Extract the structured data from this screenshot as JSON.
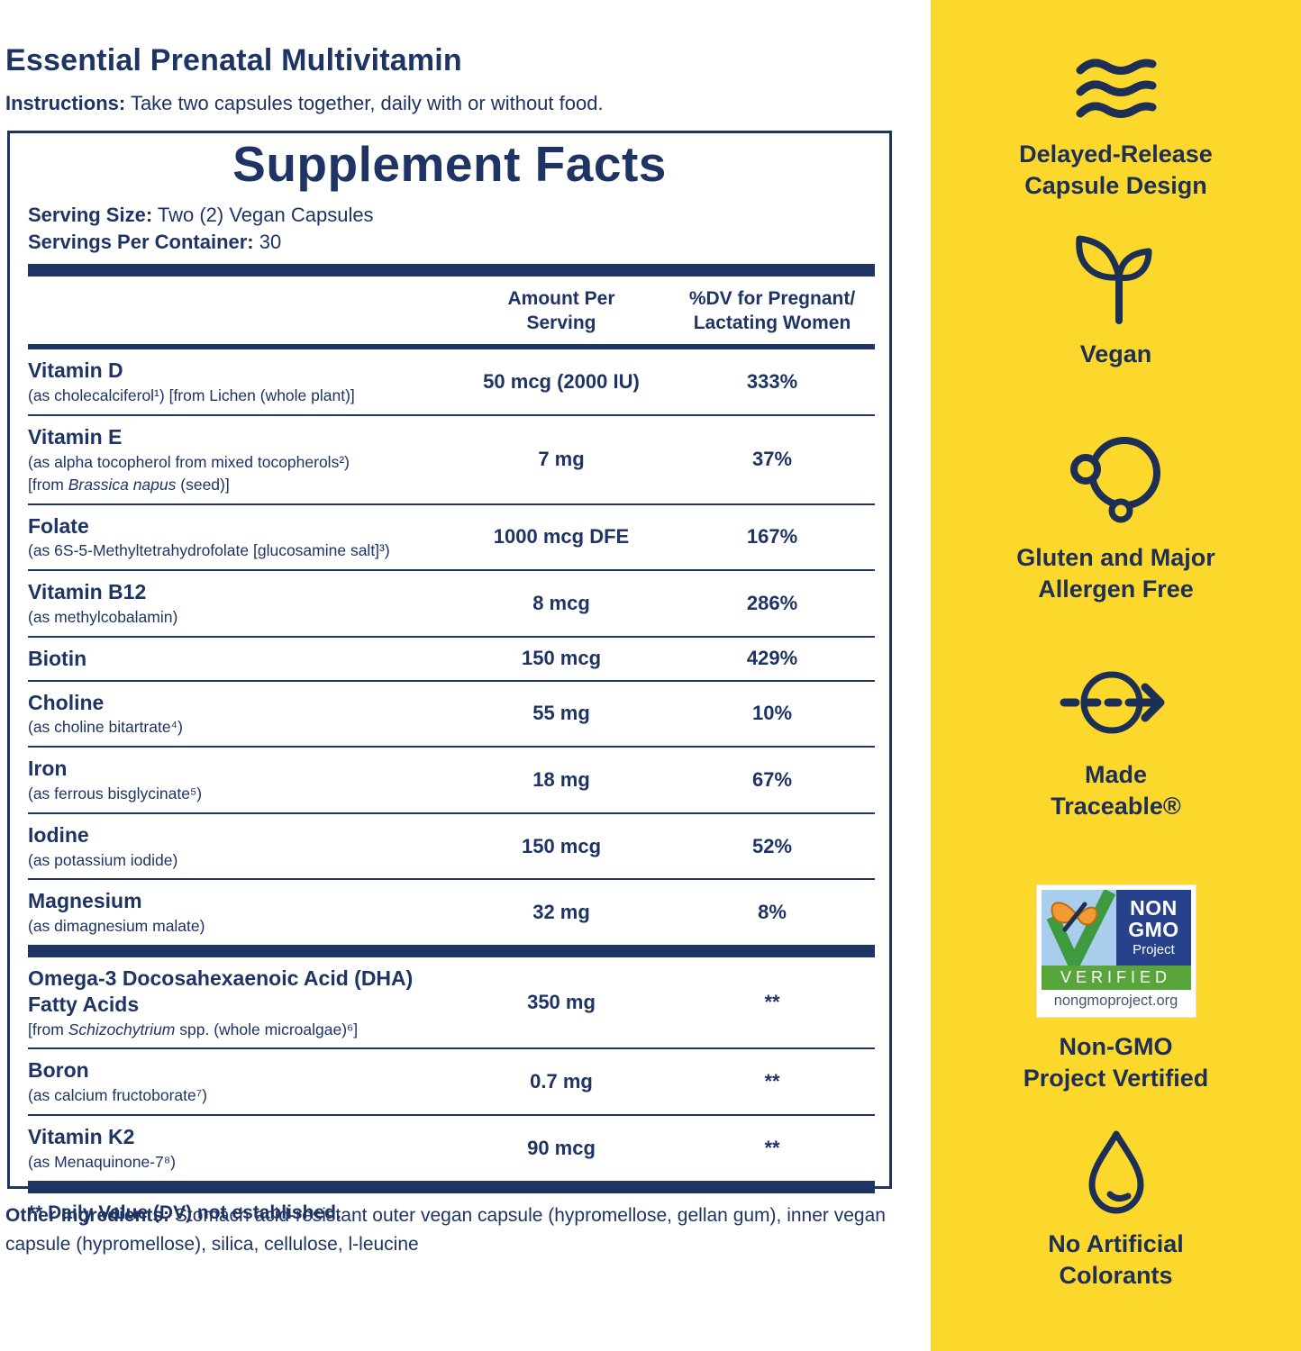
{
  "page": {
    "title": "Essential Prenatal Multivitamin",
    "instructions_label": "Instructions:",
    "instructions_text": " Take two capsules together, daily with or without food."
  },
  "facts": {
    "title": "Supplement Facts",
    "serving_size_label": "Serving Size:",
    "serving_size_value": " Two (2) Vegan Capsules",
    "servings_label": "Servings Per Container:",
    "servings_value": " 30",
    "amount_header": [
      "Amount Per",
      "Serving"
    ],
    "dv_header": [
      "%DV for Pregnant/",
      "Lactating Women"
    ],
    "groups": [
      {
        "rows": [
          {
            "name": "Vitamin D",
            "subs": [
              {
                "text": "(as cholecalciferol¹) [from Lichen (whole plant)]"
              }
            ],
            "amount": "50 mcg (2000 IU)",
            "dv": "333%"
          },
          {
            "name": "Vitamin E",
            "subs": [
              {
                "text": "(as alpha tocopherol from mixed tocopherols²)"
              },
              {
                "pre": "[from ",
                "italic": "Brassica napus",
                "post": " (seed)]"
              }
            ],
            "amount": "7 mg",
            "dv": "37%"
          },
          {
            "name": "Folate",
            "subs": [
              {
                "text": "(as 6S-5-Methyltetrahydrofolate [glucosamine salt]³)"
              }
            ],
            "amount": "1000 mcg DFE",
            "dv": "167%"
          },
          {
            "name": "Vitamin B12",
            "subs": [
              {
                "text": "(as methylcobalamin)"
              }
            ],
            "amount": "8 mcg",
            "dv": "286%"
          },
          {
            "name": "Biotin",
            "subs": [],
            "amount": "150 mcg",
            "dv": "429%"
          },
          {
            "name": "Choline",
            "subs": [
              {
                "text": "(as choline bitartrate⁴)"
              }
            ],
            "amount": "55 mg",
            "dv": "10%"
          },
          {
            "name": "Iron",
            "subs": [
              {
                "text": "(as ferrous bisglycinate⁵)"
              }
            ],
            "amount": "18 mg",
            "dv": "67%"
          },
          {
            "name": "Iodine",
            "subs": [
              {
                "text": "(as potassium iodide)"
              }
            ],
            "amount": "150 mcg",
            "dv": "52%"
          },
          {
            "name": "Magnesium",
            "subs": [
              {
                "text": "(as dimagnesium malate)"
              }
            ],
            "amount": "32 mg",
            "dv": "8%"
          }
        ]
      },
      {
        "rows": [
          {
            "name_lines": [
              "Omega-3 Docosahexaenoic Acid (DHA)",
              "Fatty Acids"
            ],
            "subs": [
              {
                "pre": "[from ",
                "italic": "Schizochytrium",
                "post": " spp. (whole microalgae)⁶]"
              }
            ],
            "amount": "350 mg",
            "dv": "**"
          },
          {
            "name": "Boron",
            "subs": [
              {
                "text": "(as calcium fructoborate⁷)"
              }
            ],
            "amount": "0.7 mg",
            "dv": "**"
          },
          {
            "name": "Vitamin K2",
            "subs": [
              {
                "text": "(as Menaquinone-7⁸)"
              }
            ],
            "amount": "90 mcg",
            "dv": "**"
          }
        ]
      }
    ],
    "footnote": "** Daily Value (DV) not established."
  },
  "other_ingredients": {
    "label": "Other Ingredients:",
    "text": " Stomach acid-resistant outer vegan capsule (hypromellose, gellan gum), inner vegan capsule (hypromellose),  silica, cellulose, l-leucine"
  },
  "sidebar": {
    "features": [
      {
        "icon": "waves-icon",
        "lines": [
          "Delayed-Release",
          "Capsule Design"
        ]
      },
      {
        "icon": "sprout-icon",
        "lines": [
          "Vegan"
        ]
      },
      {
        "icon": "molecule-icon",
        "lines": [
          "Gluten and Major",
          "Allergen Free"
        ]
      },
      {
        "icon": "traceable-icon",
        "lines": [
          "Made",
          "Traceable®"
        ]
      },
      {
        "icon": "non-gmo-badge",
        "badge": true,
        "lines": [
          "Non-GMO",
          "Project Vertified"
        ]
      },
      {
        "icon": "droplet-icon",
        "lines": [
          "No Artificial",
          "Colorants"
        ]
      }
    ],
    "badge": {
      "top_lines": [
        "NON",
        "GMO"
      ],
      "project": "Project",
      "band": "VERIFIED",
      "url": "nongmoproject.org"
    }
  },
  "colors": {
    "navy": "#1E3464",
    "sidebar_navy": "#1E2F55",
    "yellow": "#FBD82B",
    "badge_navy": "#27418B",
    "badge_sky": "#A9CDEC",
    "badge_green": "#58A53B",
    "badge_orange": "#F29A33"
  }
}
